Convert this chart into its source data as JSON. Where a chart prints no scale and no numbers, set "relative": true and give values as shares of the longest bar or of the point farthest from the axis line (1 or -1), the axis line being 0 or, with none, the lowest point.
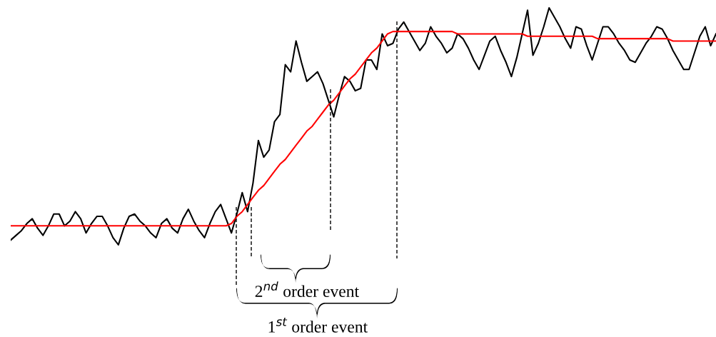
{
  "chart_data": {
    "type": "line",
    "relative": true,
    "categories": [
      null,
      null,
      null,
      null,
      null,
      null,
      null,
      null,
      null,
      null,
      null,
      null,
      null,
      null,
      null,
      null,
      null,
      null,
      null,
      null,
      null,
      null,
      null,
      null,
      null,
      null,
      null,
      null,
      null,
      null,
      null,
      null,
      null,
      null,
      null,
      null,
      null,
      null,
      null,
      null,
      null,
      null,
      null,
      null,
      null,
      null,
      null,
      null,
      null,
      null,
      null,
      null,
      null,
      null,
      null,
      null,
      null,
      null,
      null,
      null,
      null,
      null,
      null,
      null,
      null,
      null,
      null,
      null,
      null,
      null,
      null,
      null,
      null,
      null,
      null,
      null,
      null,
      null,
      null,
      null,
      null,
      null,
      null,
      null,
      null,
      null,
      null,
      null,
      null,
      null,
      null,
      null,
      null,
      null,
      null,
      null,
      null,
      null,
      null,
      null,
      null,
      null,
      null,
      null,
      null,
      null,
      null,
      null,
      null,
      null,
      null,
      null,
      null,
      null,
      null,
      null,
      null,
      null,
      null,
      null,
      null,
      null,
      null,
      null,
      null,
      null,
      null,
      null,
      null,
      null,
      null,
      null
    ],
    "series": [
      {
        "color": "#000000",
        "values": [
          0.02,
          0.04,
          0.06,
          0.09,
          0.11,
          0.07,
          0.04,
          0.08,
          0.13,
          0.13,
          0.08,
          0.1,
          0.14,
          0.11,
          0.05,
          0.09,
          0.12,
          0.12,
          0.08,
          0.03,
          0.0,
          0.07,
          0.12,
          0.13,
          0.1,
          0.08,
          0.05,
          0.03,
          0.09,
          0.11,
          0.07,
          0.05,
          0.11,
          0.15,
          0.1,
          0.06,
          0.03,
          0.09,
          0.14,
          0.17,
          0.11,
          0.05,
          0.13,
          0.22,
          0.14,
          0.26,
          0.44,
          0.37,
          0.4,
          0.52,
          0.55,
          0.76,
          0.73,
          0.86,
          0.77,
          0.69,
          0.71,
          0.73,
          0.68,
          0.61,
          0.54,
          0.63,
          0.71,
          0.69,
          0.65,
          0.66,
          0.78,
          0.78,
          0.74,
          0.89,
          0.84,
          0.85,
          0.91,
          0.94,
          0.9,
          0.86,
          0.82,
          0.85,
          0.92,
          0.88,
          0.85,
          0.81,
          0.83,
          0.89,
          0.87,
          0.83,
          0.78,
          0.74,
          0.8,
          0.86,
          0.88,
          0.82,
          0.77,
          0.71,
          0.79,
          0.89,
          0.99,
          0.8,
          0.85,
          0.92,
          1.0,
          0.96,
          0.92,
          0.87,
          0.83,
          0.92,
          0.91,
          0.84,
          0.78,
          0.85,
          0.92,
          0.92,
          0.89,
          0.85,
          0.82,
          0.78,
          0.77,
          0.81,
          0.85,
          0.88,
          0.92,
          0.91,
          0.87,
          0.82,
          0.78,
          0.74,
          0.74,
          0.81,
          0.88,
          0.92,
          0.84,
          0.89
        ]
      },
      {
        "color": "#ff0000",
        "values": [
          0.08,
          0.08,
          0.08,
          0.08,
          0.08,
          0.08,
          0.08,
          0.08,
          0.08,
          0.08,
          0.08,
          0.08,
          0.08,
          0.08,
          0.08,
          0.08,
          0.08,
          0.08,
          0.08,
          0.08,
          0.08,
          0.08,
          0.08,
          0.08,
          0.08,
          0.08,
          0.08,
          0.08,
          0.08,
          0.08,
          0.08,
          0.08,
          0.08,
          0.08,
          0.08,
          0.08,
          0.08,
          0.08,
          0.08,
          0.08,
          0.08,
          0.09,
          0.12,
          0.14,
          0.17,
          0.2,
          0.23,
          0.25,
          0.28,
          0.31,
          0.34,
          0.36,
          0.39,
          0.42,
          0.45,
          0.48,
          0.5,
          0.53,
          0.56,
          0.59,
          0.61,
          0.64,
          0.67,
          0.7,
          0.72,
          0.75,
          0.78,
          0.81,
          0.83,
          0.86,
          0.89,
          0.9,
          0.9,
          0.9,
          0.9,
          0.9,
          0.9,
          0.9,
          0.9,
          0.9,
          0.9,
          0.9,
          0.9,
          0.89,
          0.89,
          0.89,
          0.89,
          0.89,
          0.89,
          0.89,
          0.89,
          0.89,
          0.89,
          0.89,
          0.89,
          0.89,
          0.88,
          0.88,
          0.88,
          0.88,
          0.88,
          0.88,
          0.88,
          0.88,
          0.88,
          0.88,
          0.88,
          0.88,
          0.88,
          0.87,
          0.87,
          0.87,
          0.87,
          0.87,
          0.87,
          0.87,
          0.87,
          0.87,
          0.87,
          0.87,
          0.87,
          0.87,
          0.87,
          0.86,
          0.86,
          0.86,
          0.86,
          0.86,
          0.86,
          0.86,
          0.86,
          0.86
        ]
      }
    ],
    "annotations": [
      "2$^{nd}$ order event",
      "1$^{st}$ order event"
    ]
  }
}
